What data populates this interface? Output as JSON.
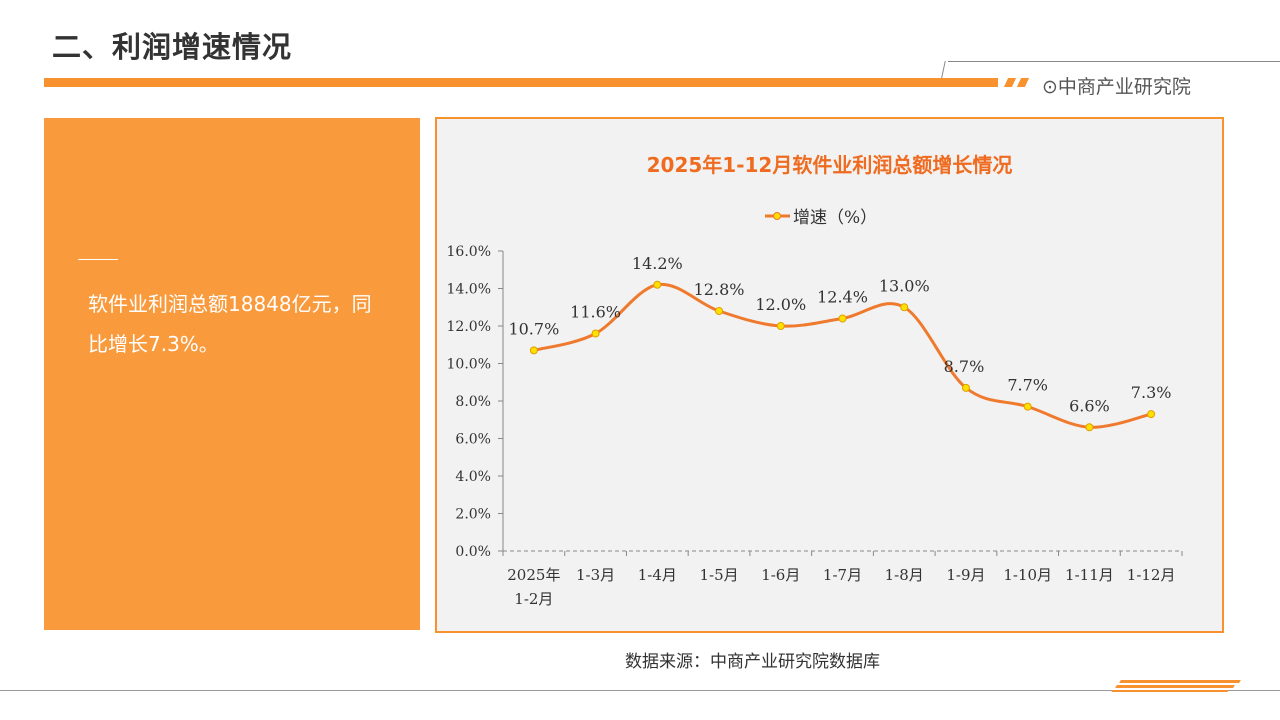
{
  "header": {
    "title": "二、利润增速情况",
    "brand": "中商产业研究院",
    "brand_icon": "target-circle-icon"
  },
  "left_panel": {
    "text": "软件业利润总额18848亿元，同比增长7.3%。"
  },
  "source": "数据来源：中商产业研究院数据库",
  "colors": {
    "accent": "#F7922E",
    "line": "#EF7A2E",
    "marker": "#FFE000",
    "title": "#EF6B20"
  },
  "chart_data": {
    "type": "line",
    "title": "2025年1-12月软件业利润总额增长情况",
    "legend": {
      "entries": [
        "增速（%）"
      ],
      "placement": "top"
    },
    "categories": [
      "2025年\n1-2月",
      "1-3月",
      "1-4月",
      "1-5月",
      "1-6月",
      "1-7月",
      "1-8月",
      "1-9月",
      "1-10月",
      "1-11月",
      "1-12月"
    ],
    "series": [
      {
        "name": "增速（%）",
        "values": [
          10.7,
          11.6,
          14.2,
          12.8,
          12.0,
          12.4,
          13.0,
          8.7,
          7.7,
          6.6,
          7.3
        ],
        "labels": [
          "10.7%",
          "11.6%",
          "14.2%",
          "12.8%",
          "12.0%",
          "12.4%",
          "13.0%",
          "8.7%",
          "7.7%",
          "6.6%",
          "7.3%"
        ]
      }
    ],
    "yticks": [
      "0.0%",
      "2.0%",
      "4.0%",
      "6.0%",
      "8.0%",
      "10.0%",
      "12.0%",
      "14.0%",
      "16.0%"
    ],
    "ylim": [
      0,
      16
    ],
    "grid": false,
    "smooth": true
  }
}
